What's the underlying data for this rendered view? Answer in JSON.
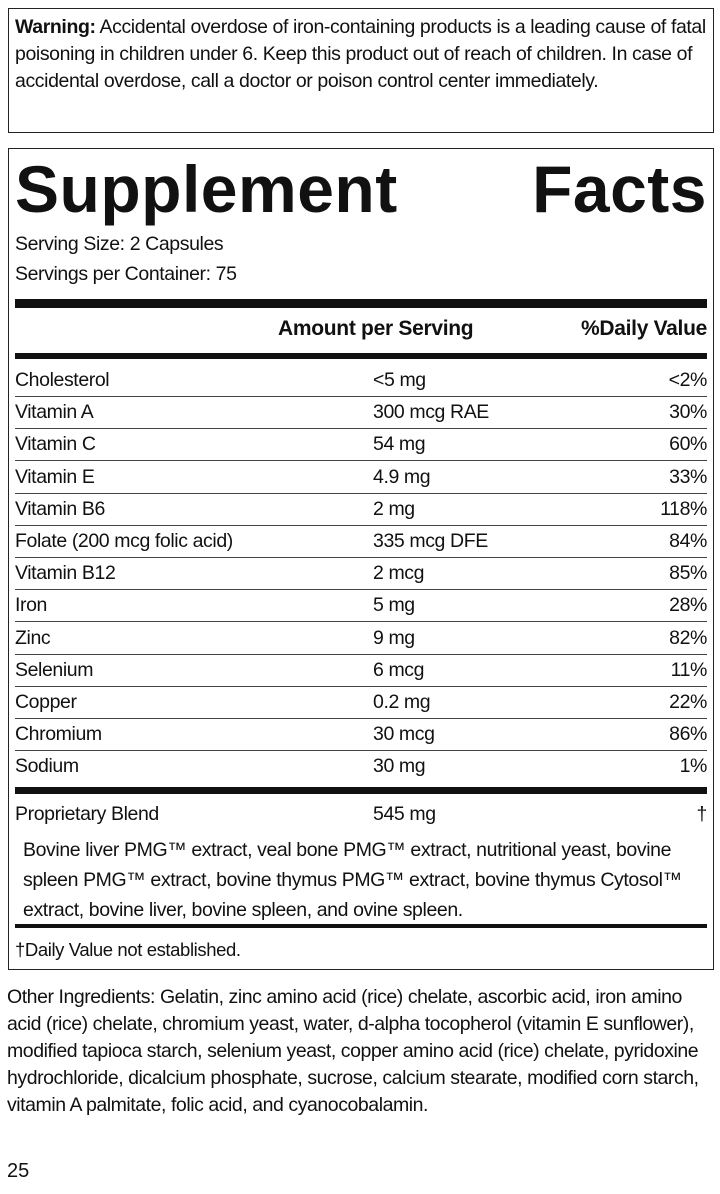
{
  "warning": {
    "label": "Warning:",
    "text": " Accidental overdose of iron-containing products is a leading cause of fatal poisoning in children under 6. Keep this product out of reach of children. In case of accidental overdose, call a doctor or poison control center immediately."
  },
  "facts": {
    "title_word1": "Supplement",
    "title_word2": "Facts",
    "serving_size": "Serving Size: 2 Capsules",
    "servings_per_container": "Servings per Container: 75",
    "col_amount": "Amount per Serving",
    "col_dv": "%Daily Value",
    "rows": [
      {
        "name": "Cholesterol",
        "amount": "<5 mg",
        "dv": "<2%"
      },
      {
        "name": "Vitamin A",
        "amount": "300 mcg RAE",
        "dv": "30%"
      },
      {
        "name": "Vitamin C",
        "amount": "54 mg",
        "dv": "60%"
      },
      {
        "name": "Vitamin E",
        "amount": "4.9 mg",
        "dv": "33%"
      },
      {
        "name": "Vitamin B6",
        "amount": "2 mg",
        "dv": "118%"
      },
      {
        "name": "Folate (200 mcg folic acid)",
        "amount": "335 mcg DFE",
        "dv": "84%"
      },
      {
        "name": "Vitamin B12",
        "amount": "2 mcg",
        "dv": "85%"
      },
      {
        "name": "Iron",
        "amount": "5 mg",
        "dv": "28%"
      },
      {
        "name": "Zinc",
        "amount": "9 mg",
        "dv": "82%"
      },
      {
        "name": "Selenium",
        "amount": "6 mcg",
        "dv": "11%"
      },
      {
        "name": "Copper",
        "amount": "0.2 mg",
        "dv": "22%"
      },
      {
        "name": "Chromium",
        "amount": "30 mcg",
        "dv": "86%"
      },
      {
        "name": "Sodium",
        "amount": "30 mg",
        "dv": "1%"
      }
    ],
    "blend": {
      "name": "Proprietary Blend",
      "amount": "545 mg",
      "dv": "†",
      "ingredients": "Bovine liver PMG™ extract, veal bone PMG™ extract, nutritional yeast, bovine spleen PMG™ extract, bovine thymus PMG™ extract, bovine thymus Cytosol™ extract, bovine liver, bovine spleen, and ovine spleen."
    },
    "footnote": "†Daily Value not established."
  },
  "other_ingredients": "Other Ingredients: Gelatin, zinc amino acid (rice) chelate, ascorbic acid, iron amino acid (rice) chelate, chromium yeast, water, d-alpha tocopherol (vitamin E sunflower), modified tapioca starch, selenium yeast, copper amino acid (rice) chelate, pyridoxine hydrochloride, dicalcium phosphate, sucrose, calcium stearate, modified corn starch, vitamin A palmitate,  folic acid, and cyanocobalamin.",
  "page_number": "25"
}
